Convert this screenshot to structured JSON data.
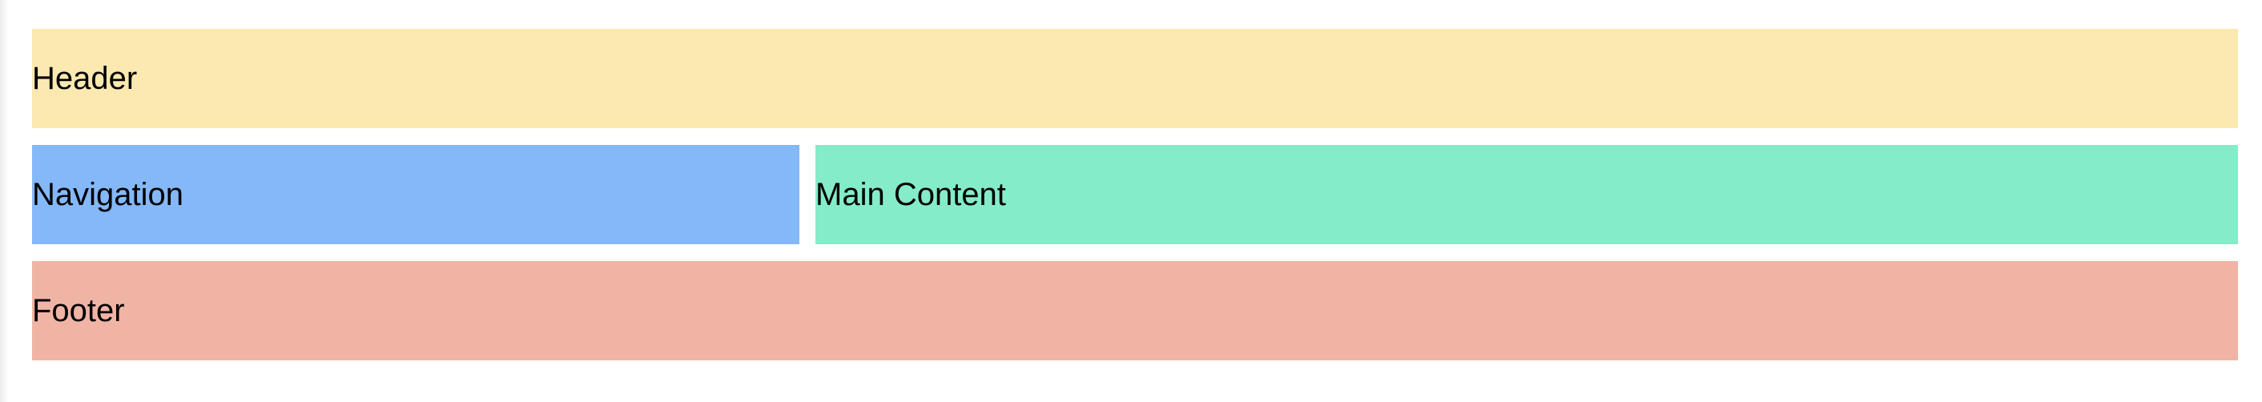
{
  "header": {
    "label": "Header",
    "color": "#fce9b0"
  },
  "navigation": {
    "label": "Navigation",
    "color": "#84b8f9"
  },
  "main": {
    "label": "Main Content",
    "color": "#84ecc8"
  },
  "footer": {
    "label": "Footer",
    "color": "#f0b4a5"
  }
}
